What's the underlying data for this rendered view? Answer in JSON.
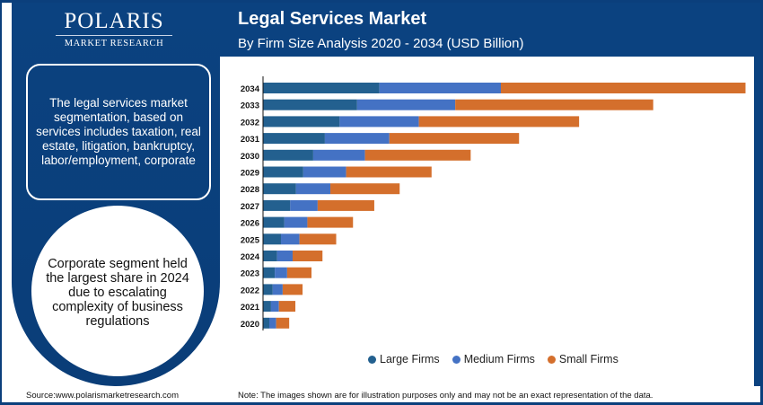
{
  "brand": {
    "name": "POLARIS",
    "tagline": "MARKET RESEARCH"
  },
  "header": {
    "title": "Legal Services Market",
    "subtitle": "By Firm Size Analysis 2020 - 2034 (USD Billion)"
  },
  "sidebar": {
    "info_text": "The legal services market segmentation, based on services includes taxation, real estate, litigation, bankruptcy, labor/employment, corporate",
    "highlight_text": "Corporate segment held the largest share in 2024 due to escalating complexity of business regulations"
  },
  "footer": {
    "source": "Source:www.polarismarketresearch.com",
    "note": "Note: The images shown are for illustration purposes only and may not be an exact representation of the data."
  },
  "colors": {
    "large": "#23608f",
    "medium": "#4472c4",
    "small": "#d46f2c",
    "brand": "#0b4280"
  },
  "chart_data": {
    "type": "bar",
    "orientation": "horizontal",
    "stacked": true,
    "title": "Legal Services Market",
    "subtitle": "By Firm Size Analysis 2020 - 2034 (USD Billion)",
    "categories": [
      "2034",
      "2033",
      "2032",
      "2031",
      "2030",
      "2029",
      "2028",
      "2027",
      "2026",
      "2025",
      "2024",
      "2023",
      "2022",
      "2021",
      "2020"
    ],
    "series": [
      {
        "name": "Large Firms",
        "values": [
          33.8,
          27.3,
          22.2,
          17.9,
          14.5,
          11.6,
          9.5,
          7.8,
          6.1,
          5.1,
          4.0,
          3.3,
          2.7,
          2.2,
          1.7
        ]
      },
      {
        "name": "Medium Firms",
        "values": [
          35.4,
          28.6,
          23.1,
          18.8,
          15.1,
          12.5,
          10.0,
          8.0,
          6.7,
          5.4,
          4.5,
          3.6,
          2.9,
          2.3,
          2.0
        ]
      },
      {
        "name": "Small Firms",
        "values": [
          71.3,
          57.7,
          46.7,
          37.8,
          30.8,
          24.9,
          20.2,
          16.5,
          13.3,
          10.7,
          8.7,
          7.1,
          5.8,
          4.8,
          3.8
        ]
      }
    ],
    "xlabel": "",
    "ylabel": "",
    "grid": false,
    "legend": "bottom"
  }
}
